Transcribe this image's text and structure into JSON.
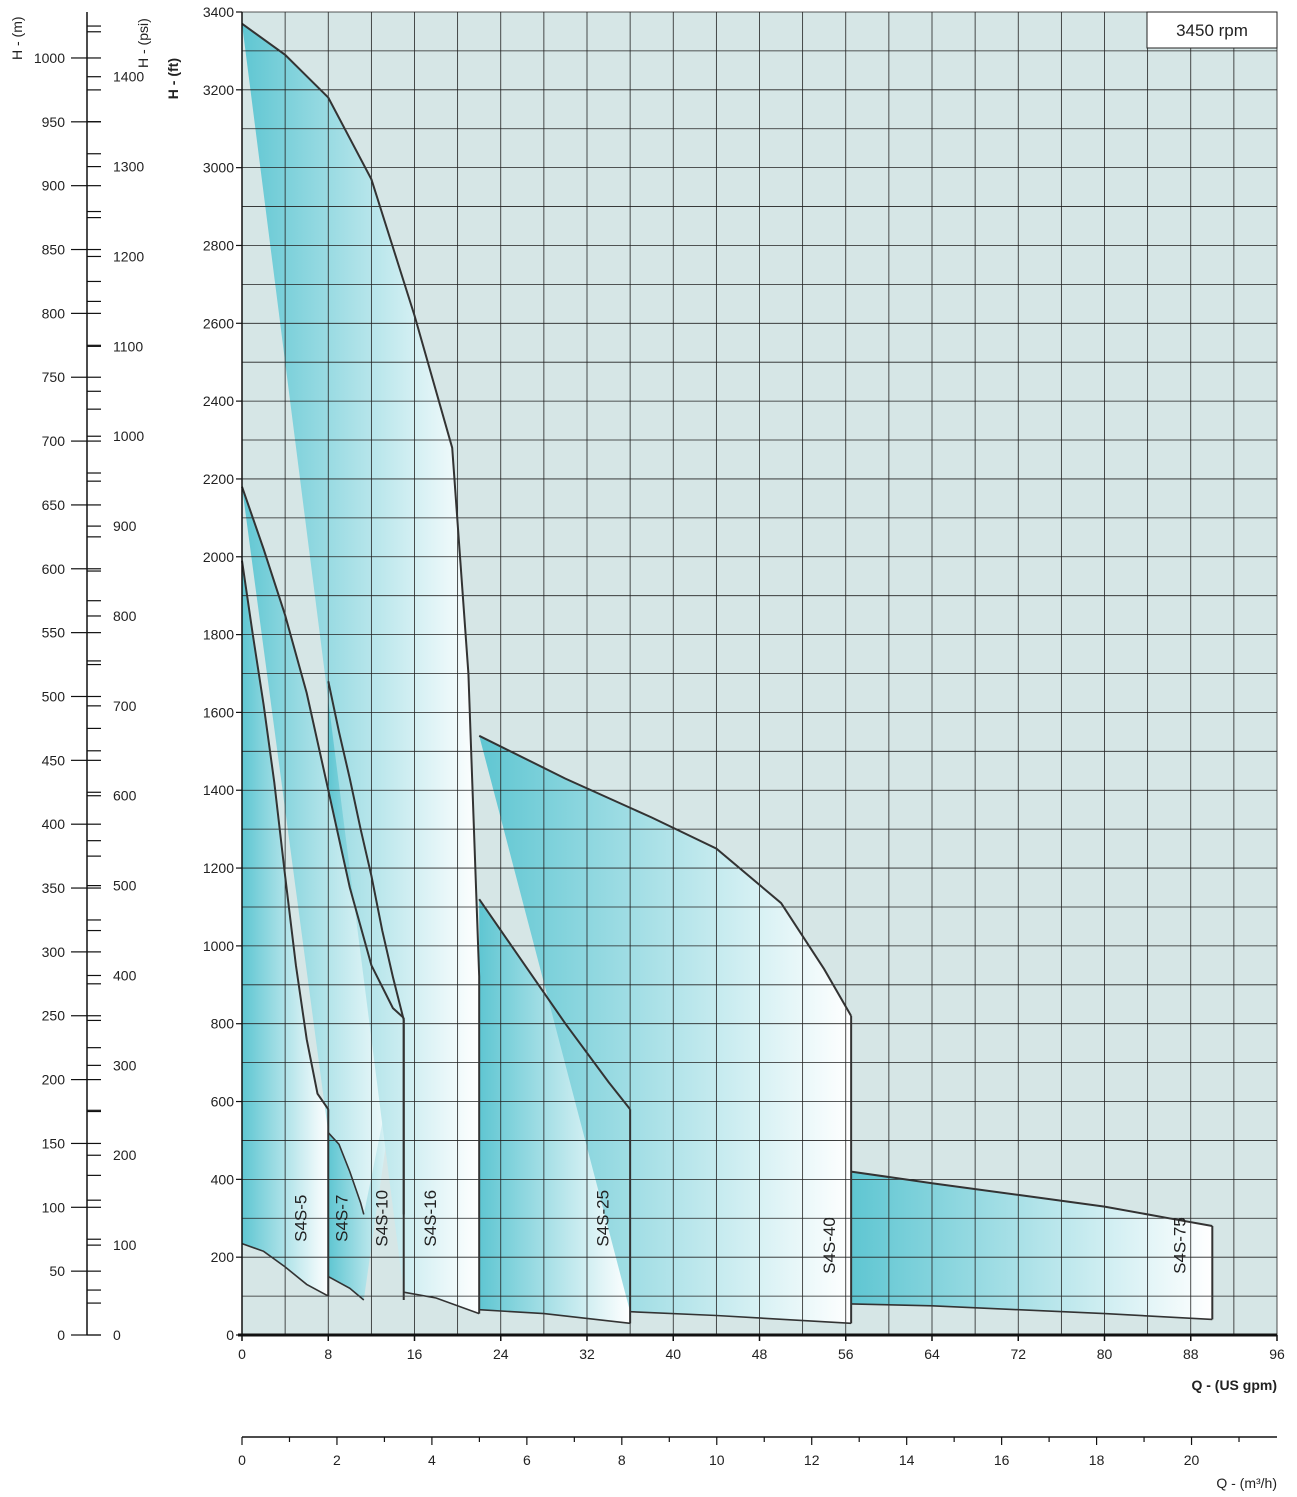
{
  "chart_data": {
    "type": "area",
    "speed_label": "3450 rpm",
    "x_axis": {
      "label": "Q - (US gpm)",
      "range": [
        0,
        96
      ],
      "ticks": [
        0,
        8,
        16,
        24,
        32,
        40,
        48,
        56,
        64,
        72,
        80,
        88,
        96
      ]
    },
    "x2_axis": {
      "label": "Q - (m³/h)",
      "range": [
        0,
        21.8
      ],
      "ticks": [
        0,
        2,
        4,
        6,
        8,
        10,
        12,
        14,
        16,
        18,
        20
      ]
    },
    "y_axis": {
      "label": "H - (ft)",
      "range": [
        0,
        3400
      ],
      "ticks": [
        0,
        200,
        400,
        600,
        800,
        1000,
        1200,
        1400,
        1600,
        1800,
        2000,
        2200,
        2400,
        2600,
        2800,
        3000,
        3200,
        3400
      ]
    },
    "y_m_axis": {
      "label": "H - (m)",
      "range": [
        0,
        1036
      ],
      "ticks": [
        0,
        50,
        100,
        150,
        200,
        250,
        300,
        350,
        400,
        450,
        500,
        550,
        600,
        650,
        700,
        750,
        800,
        850,
        900,
        950,
        1000
      ]
    },
    "y_psi_axis": {
      "label": "H - (psi)",
      "range": [
        0,
        1472
      ],
      "ticks": [
        0,
        100,
        200,
        300,
        400,
        500,
        600,
        700,
        800,
        900,
        1000,
        1100,
        1200,
        1300,
        1400
      ]
    },
    "grid": true,
    "series": [
      {
        "name": "S4S-5",
        "label_at": [
          6.0,
          300
        ],
        "upper": [
          [
            0,
            1990
          ],
          [
            1,
            1800
          ],
          [
            2,
            1620
          ],
          [
            3,
            1420
          ],
          [
            4,
            1180
          ],
          [
            5,
            950
          ],
          [
            6,
            760
          ],
          [
            7,
            620
          ],
          [
            8,
            580
          ]
        ],
        "lower": [
          [
            0,
            235
          ],
          [
            2,
            215
          ],
          [
            4,
            175
          ],
          [
            6,
            130
          ],
          [
            8,
            100
          ]
        ]
      },
      {
        "name": "S4S-7",
        "label_at": [
          9.8,
          300
        ],
        "upper": [
          [
            8,
            1680
          ],
          [
            9,
            1550
          ],
          [
            10,
            1430
          ],
          [
            11,
            1300
          ],
          [
            12,
            1180
          ],
          [
            13,
            1040
          ],
          [
            14,
            920
          ],
          [
            15,
            810
          ]
        ],
        "lower": [
          [
            8,
            150
          ],
          [
            10,
            120
          ],
          [
            11.3,
            90
          ]
        ]
      },
      {
        "name": "S4S-10",
        "label_at": [
          13.5,
          300
        ],
        "upper": [
          [
            0,
            2180
          ],
          [
            2,
            2020
          ],
          [
            4,
            1850
          ],
          [
            6,
            1650
          ],
          [
            8,
            1400
          ],
          [
            10,
            1150
          ],
          [
            12,
            950
          ],
          [
            14,
            840
          ],
          [
            15,
            815
          ]
        ],
        "lower": [
          [
            8,
            520
          ],
          [
            9,
            490
          ],
          [
            10,
            420
          ],
          [
            11,
            340
          ],
          [
            11.3,
            310
          ]
        ]
      },
      {
        "name": "S4S-16",
        "label_at": [
          18.0,
          300
        ],
        "upper": [
          [
            0,
            3370
          ],
          [
            4,
            3290
          ],
          [
            8,
            3180
          ],
          [
            12,
            2970
          ],
          [
            16,
            2620
          ],
          [
            19.5,
            2280
          ],
          [
            21,
            1700
          ],
          [
            22,
            920
          ]
        ],
        "lower": [
          [
            15,
            110
          ],
          [
            18,
            95
          ],
          [
            22,
            55
          ]
        ]
      },
      {
        "name": "S4S-25",
        "label_at": [
          34.0,
          300
        ],
        "upper": [
          [
            22,
            1120
          ],
          [
            26,
            960
          ],
          [
            30,
            800
          ],
          [
            34,
            650
          ],
          [
            36,
            580
          ]
        ],
        "lower": [
          [
            22,
            65
          ],
          [
            28,
            55
          ],
          [
            36,
            30
          ]
        ]
      },
      {
        "name": "S4S-40",
        "label_at": [
          55.0,
          230
        ],
        "upper": [
          [
            22,
            1540
          ],
          [
            30,
            1430
          ],
          [
            38,
            1330
          ],
          [
            44,
            1250
          ],
          [
            50,
            1110
          ],
          [
            54,
            940
          ],
          [
            56.5,
            820
          ]
        ],
        "lower": [
          [
            36,
            60
          ],
          [
            44,
            50
          ],
          [
            56.5,
            30
          ]
        ]
      },
      {
        "name": "S4S-75",
        "label_at": [
          87.5,
          230
        ],
        "upper": [
          [
            56.5,
            420
          ],
          [
            64,
            390
          ],
          [
            72,
            360
          ],
          [
            80,
            330
          ],
          [
            86,
            300
          ],
          [
            90,
            280
          ]
        ],
        "lower": [
          [
            56.5,
            80
          ],
          [
            64,
            75
          ],
          [
            72,
            65
          ],
          [
            80,
            55
          ],
          [
            90,
            40
          ]
        ]
      }
    ]
  },
  "colors": {
    "background": "#d6e6e6",
    "fill_start": "#5fc6d2",
    "fill_end": "#ffffff",
    "curve": "#333333",
    "grid": "#222222"
  }
}
